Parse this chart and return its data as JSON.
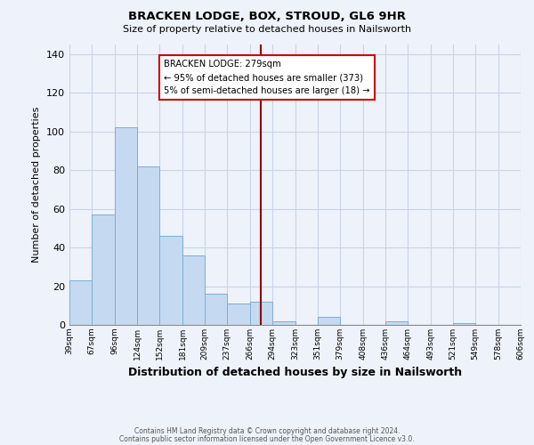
{
  "title": "BRACKEN LODGE, BOX, STROUD, GL6 9HR",
  "subtitle": "Size of property relative to detached houses in Nailsworth",
  "xlabel": "Distribution of detached houses by size in Nailsworth",
  "ylabel": "Number of detached properties",
  "footer_line1": "Contains HM Land Registry data © Crown copyright and database right 2024.",
  "footer_line2": "Contains public sector information licensed under the Open Government Licence v3.0.",
  "bin_edges": [
    39,
    67,
    96,
    124,
    152,
    181,
    209,
    237,
    266,
    294,
    323,
    351,
    379,
    408,
    436,
    464,
    493,
    521,
    549,
    578,
    606
  ],
  "bin_labels": [
    "39sqm",
    "67sqm",
    "96sqm",
    "124sqm",
    "152sqm",
    "181sqm",
    "209sqm",
    "237sqm",
    "266sqm",
    "294sqm",
    "323sqm",
    "351sqm",
    "379sqm",
    "408sqm",
    "436sqm",
    "464sqm",
    "493sqm",
    "521sqm",
    "549sqm",
    "578sqm",
    "606sqm"
  ],
  "counts": [
    23,
    57,
    102,
    82,
    46,
    36,
    16,
    11,
    12,
    2,
    0,
    4,
    0,
    0,
    2,
    0,
    0,
    1,
    0,
    0,
    1
  ],
  "bar_color": "#c5d9f1",
  "bar_edge_color": "#7bafd4",
  "property_line_x": 279,
  "property_line_color": "#8b0000",
  "annotation_line1": "BRACKEN LODGE: 279sqm",
  "annotation_line2": "← 95% of detached houses are smaller (373)",
  "annotation_line3": "5% of semi-detached houses are larger (18) →",
  "annotation_box_color": "#cc0000",
  "ylim": [
    0,
    145
  ],
  "yticks": [
    0,
    20,
    40,
    60,
    80,
    100,
    120,
    140
  ],
  "grid_color": "#c8d4e8",
  "background_color": "#eef2fa"
}
